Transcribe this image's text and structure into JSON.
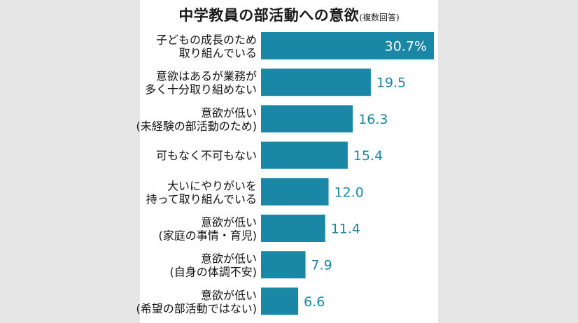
{
  "chart_data": {
    "type": "bar",
    "orientation": "horizontal",
    "title": "中学教員の部活動への意欲",
    "subtitle": "(複数回答)",
    "value_suffix_first": "%",
    "bar_color": "#1a87a6",
    "categories": [
      [
        "子どもの成長のため",
        "取り組んでいる"
      ],
      [
        "意欲はあるが業務が",
        "多く十分取り組めない"
      ],
      [
        "意欲が低い",
        "(未経験の部活動のため)"
      ],
      [
        "可もなく不可もない"
      ],
      [
        "大いにやりがいを",
        "持って取り組んでいる"
      ],
      [
        "意欲が低い",
        "(家庭の事情・育児)"
      ],
      [
        "意欲が低い",
        "(自身の体調不安)"
      ],
      [
        "意欲が低い",
        "(希望の部活動ではない)"
      ]
    ],
    "values": [
      30.7,
      19.5,
      16.3,
      15.4,
      12.0,
      11.4,
      7.9,
      6.6
    ],
    "value_labels": [
      "30.7%",
      "19.5",
      "16.3",
      "15.4",
      "12.0",
      "11.4",
      "7.9",
      "6.6"
    ]
  }
}
